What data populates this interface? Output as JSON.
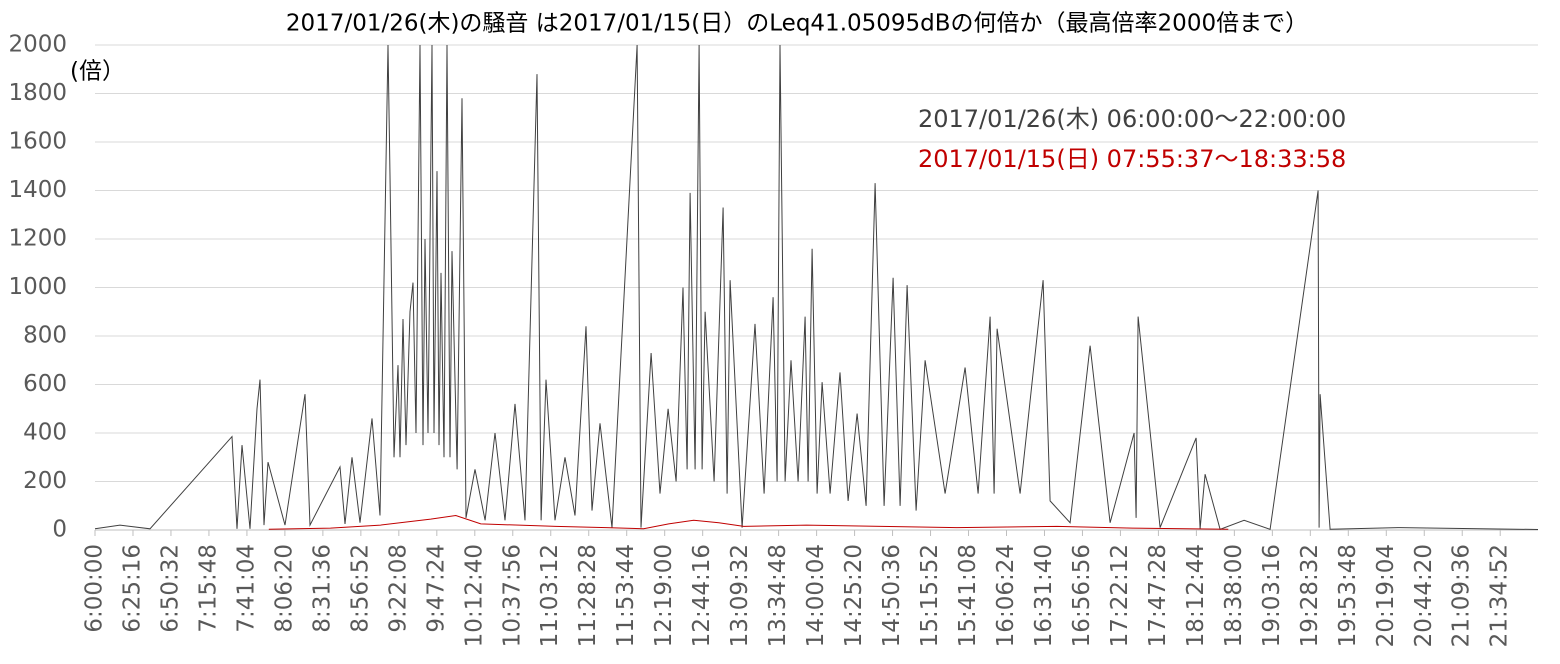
{
  "chart_data": {
    "type": "line",
    "title": "2017/01/26(木)の騒音 は2017/01/15(日）のLeq41.05095dBの何倍か（最高倍率2000倍まで）",
    "y_label": "(倍）",
    "ylim": [
      0,
      2000
    ],
    "yticks": [
      0,
      200,
      400,
      600,
      800,
      1000,
      1200,
      1400,
      1600,
      1800,
      2000
    ],
    "xlim": [
      21600,
      79200
    ],
    "xticks": [
      {
        "value": 21600,
        "label": "6:00:00"
      },
      {
        "value": 23116,
        "label": "6:25:16"
      },
      {
        "value": 24632,
        "label": "6:50:32"
      },
      {
        "value": 26148,
        "label": "7:15:48"
      },
      {
        "value": 27664,
        "label": "7:41:04"
      },
      {
        "value": 29180,
        "label": "8:06:20"
      },
      {
        "value": 30696,
        "label": "8:31:36"
      },
      {
        "value": 32212,
        "label": "8:56:52"
      },
      {
        "value": 33728,
        "label": "9:22:08"
      },
      {
        "value": 35244,
        "label": "9:47:24"
      },
      {
        "value": 36760,
        "label": "10:12:40"
      },
      {
        "value": 38276,
        "label": "10:37:56"
      },
      {
        "value": 39792,
        "label": "11:03:12"
      },
      {
        "value": 41308,
        "label": "11:28:28"
      },
      {
        "value": 42824,
        "label": "11:53:44"
      },
      {
        "value": 44340,
        "label": "12:19:00"
      },
      {
        "value": 45856,
        "label": "12:44:16"
      },
      {
        "value": 47372,
        "label": "13:09:32"
      },
      {
        "value": 48888,
        "label": "13:34:48"
      },
      {
        "value": 50404,
        "label": "14:00:04"
      },
      {
        "value": 51920,
        "label": "14:25:20"
      },
      {
        "value": 53436,
        "label": "14:50:36"
      },
      {
        "value": 54952,
        "label": "15:15:52"
      },
      {
        "value": 56468,
        "label": "15:41:08"
      },
      {
        "value": 57984,
        "label": "16:06:24"
      },
      {
        "value": 59500,
        "label": "16:31:40"
      },
      {
        "value": 61016,
        "label": "16:56:56"
      },
      {
        "value": 62532,
        "label": "17:22:12"
      },
      {
        "value": 64048,
        "label": "17:47:28"
      },
      {
        "value": 65564,
        "label": "18:12:44"
      },
      {
        "value": 67080,
        "label": "18:38:00"
      },
      {
        "value": 68596,
        "label": "19:03:16"
      },
      {
        "value": 70112,
        "label": "19:28:32"
      },
      {
        "value": 71628,
        "label": "19:53:48"
      },
      {
        "value": 73144,
        "label": "20:19:04"
      },
      {
        "value": 74660,
        "label": "20:44:20"
      },
      {
        "value": 76176,
        "label": "21:09:36"
      },
      {
        "value": 77692,
        "label": "21:34:52"
      }
    ],
    "grid": true,
    "series": [
      {
        "name": "2017/01/26(木) 06:00:00〜22:00:00",
        "color": "#404040",
        "x": [
          21600,
          22598,
          23796,
          27069,
          27269,
          27468,
          27788,
          28067,
          28187,
          28347,
          28506,
          29185,
          29983,
          30183,
          31380,
          31580,
          31860,
          32179,
          32658,
          32977,
          33297,
          33377,
          33536,
          33696,
          33776,
          33895,
          34015,
          34175,
          34295,
          34414,
          34574,
          34694,
          34774,
          34894,
          35053,
          35133,
          35253,
          35333,
          35412,
          35532,
          35652,
          35772,
          35852,
          36052,
          36251,
          36411,
          36770,
          37170,
          37568,
          37967,
          38366,
          38766,
          39245,
          39405,
          39604,
          39963,
          40362,
          40762,
          41201,
          41440,
          41760,
          42239,
          43237,
          43396,
          43796,
          44155,
          44475,
          44794,
          45073,
          45233,
          45353,
          45553,
          45713,
          45832,
          45952,
          46312,
          46671,
          46831,
          46951,
          47430,
          47947,
          48307,
          48666,
          48826,
          48945,
          49145,
          49384,
          49664,
          49943,
          50063,
          50223,
          50423,
          50623,
          50942,
          51340,
          51660,
          52019,
          52379,
          52738,
          53097,
          53456,
          53736,
          54015,
          54375,
          54734,
          55532,
          56330,
          56849,
          57328,
          57488,
          57608,
          58526,
          59444,
          59724,
          60522,
          61320,
          62119,
          63077,
          63157,
          63237,
          64115,
          65552,
          65712,
          65912,
          66511,
          67469,
          68506,
          70422,
          70462,
          70502,
          70901,
          73696,
          79200
        ],
        "values": [
          5,
          20,
          5,
          385,
          5,
          350,
          5,
          500,
          620,
          20,
          280,
          20,
          560,
          20,
          260,
          25,
          300,
          30,
          460,
          60,
          2000,
          1460,
          300,
          680,
          300,
          870,
          350,
          900,
          1020,
          400,
          2000,
          350,
          1200,
          400,
          2000,
          400,
          1480,
          350,
          1060,
          300,
          2000,
          300,
          1150,
          250,
          1780,
          50,
          250,
          40,
          400,
          40,
          520,
          40,
          1880,
          40,
          620,
          40,
          300,
          60,
          840,
          80,
          440,
          10,
          2000,
          10,
          730,
          150,
          500,
          200,
          1000,
          250,
          1390,
          250,
          2000,
          250,
          900,
          200,
          1330,
          150,
          1030,
          10,
          850,
          150,
          960,
          200,
          2000,
          200,
          700,
          200,
          880,
          200,
          1160,
          150,
          610,
          150,
          650,
          120,
          480,
          100,
          1430,
          100,
          1040,
          100,
          1010,
          80,
          700,
          150,
          670,
          150,
          880,
          150,
          830,
          150,
          1030,
          120,
          30,
          760,
          30,
          400,
          50,
          880,
          10,
          380,
          5,
          230,
          3,
          40,
          3,
          1400,
          10,
          560,
          3,
          10,
          2
        ]
      },
      {
        "name": "2017/01/15(日) 07:55:37〜18:33:58",
        "color": "#c00000",
        "x": [
          28537,
          31000,
          33000,
          35000,
          36000,
          37000,
          40000,
          42000,
          43500,
          44500,
          45500,
          46500,
          47500,
          50000,
          53000,
          56000,
          60000,
          63000,
          66838
        ],
        "values": [
          3,
          8,
          20,
          45,
          60,
          25,
          15,
          10,
          5,
          25,
          40,
          30,
          15,
          20,
          15,
          10,
          15,
          8,
          3
        ]
      }
    ]
  }
}
